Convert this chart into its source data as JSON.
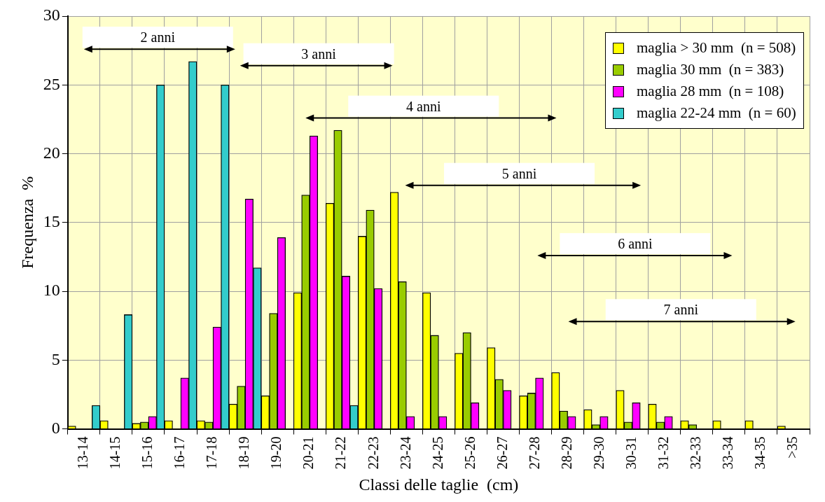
{
  "chart_data": {
    "type": "bar",
    "xlabel": "Classi delle taglie  (cm)",
    "ylabel": "Frequenza  %",
    "categories": [
      "13-14",
      "14-15",
      "15-16",
      "16-17",
      "17-18",
      "18-19",
      "19-20",
      "20-21",
      "21-22",
      "22-23",
      "23-24",
      "24-25",
      "25-26",
      "26-27",
      "27-28",
      "28-29",
      "29-30",
      "30-31",
      "31-32",
      "32-33",
      "33-34",
      "34-35",
      ">35"
    ],
    "series": [
      {
        "name": "maglia > 30 mm  (n = 508)",
        "color": "#ffff00",
        "values": [
          0.2,
          0.6,
          0.4,
          0.6,
          0.6,
          1.8,
          2.4,
          9.9,
          16.4,
          14.0,
          17.2,
          9.9,
          5.5,
          5.9,
          2.4,
          4.1,
          1.4,
          2.8,
          1.8,
          0.6,
          0.6,
          0.6,
          0.2
        ]
      },
      {
        "name": "maglia 30 mm  (n = 383)",
        "color": "#99cc00",
        "values": [
          0,
          0,
          0.5,
          0,
          0.5,
          3.1,
          8.4,
          17.0,
          21.7,
          15.9,
          10.7,
          6.8,
          7.0,
          3.6,
          2.6,
          1.3,
          0.3,
          0.5,
          0.5,
          0.3,
          0,
          0,
          0
        ]
      },
      {
        "name": "maglia 28 mm  (n = 108)",
        "color": "#ff00ff",
        "values": [
          0,
          0,
          0.9,
          3.7,
          7.4,
          16.7,
          13.9,
          21.3,
          11.1,
          10.2,
          0.9,
          0.9,
          1.9,
          2.8,
          3.7,
          0.9,
          0.9,
          1.9,
          0.9,
          0,
          0,
          0,
          0
        ]
      },
      {
        "name": "maglia 22-24 mm  (n = 60)",
        "color": "#33cccc",
        "values": [
          1.7,
          8.3,
          25.0,
          26.7,
          25.0,
          11.7,
          0,
          0,
          1.7,
          0,
          0,
          0,
          0,
          0,
          0,
          0,
          0,
          0,
          0,
          0,
          0,
          0,
          0
        ]
      }
    ],
    "ylim": [
      0,
      30
    ],
    "yticks": [
      0,
      5,
      10,
      15,
      20,
      25,
      30
    ],
    "grid": true,
    "legend": "top right",
    "annotations": [
      "2 anni",
      "3 anni",
      "4 anni",
      "5 anni",
      "6 anni",
      "7 anni"
    ]
  }
}
